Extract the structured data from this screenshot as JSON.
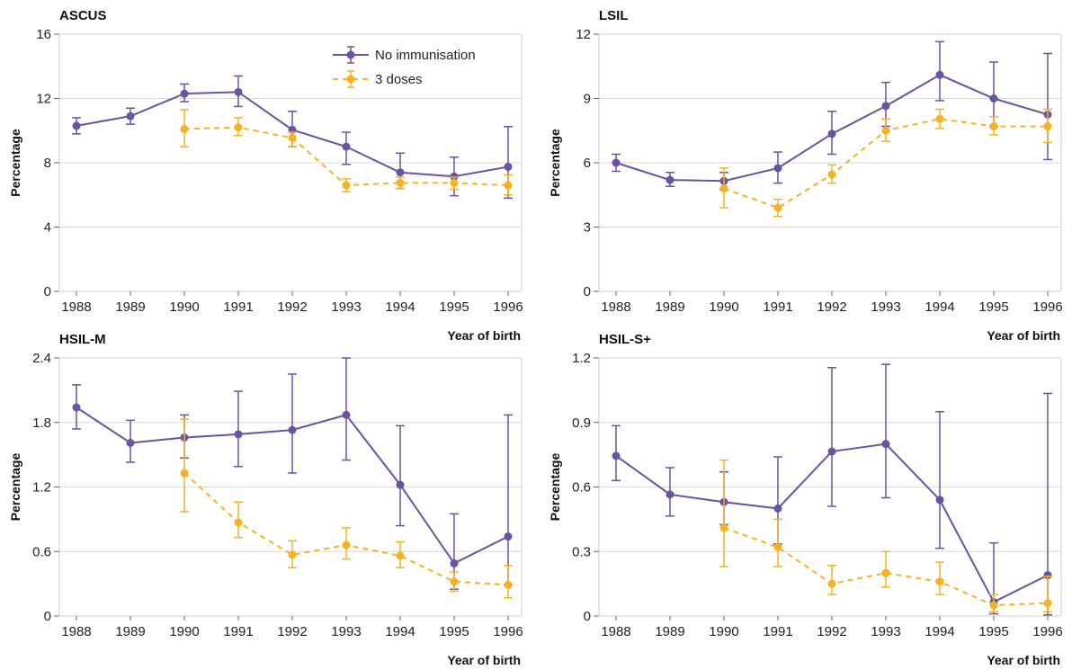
{
  "x_axis_title": "Year of birth",
  "legend": {
    "items": [
      {
        "label": "No immunisation",
        "color": "#6a53a1",
        "dash": "solid"
      },
      {
        "label": "3 doses",
        "color": "#f5b324",
        "dash": "dashed"
      }
    ]
  },
  "chart_data": [
    {
      "type": "line",
      "title": "ASCUS",
      "ylabel": "Percentage",
      "xlabel": "Year of birth",
      "ylim": [
        0,
        16
      ],
      "yticks": [
        0,
        4,
        8,
        12,
        16
      ],
      "x": [
        1988,
        1989,
        1990,
        1991,
        1992,
        1993,
        1994,
        1995,
        1996
      ],
      "series": [
        {
          "name": "No immunisation",
          "values": [
            10.3,
            10.9,
            12.3,
            12.4,
            10.05,
            9.0,
            7.4,
            7.15,
            7.75
          ],
          "lower": [
            9.8,
            10.4,
            11.8,
            11.5,
            9.0,
            7.9,
            6.4,
            5.95,
            5.8
          ],
          "upper": [
            10.8,
            11.4,
            12.9,
            13.4,
            11.2,
            9.9,
            8.6,
            8.35,
            10.25
          ]
        },
        {
          "name": "3 doses",
          "x": [
            1990,
            1991,
            1992,
            1993,
            1994,
            1995,
            1996
          ],
          "values": [
            10.1,
            10.2,
            9.55,
            6.6,
            6.75,
            6.75,
            6.6
          ],
          "lower": [
            9.0,
            9.7,
            9.0,
            6.2,
            6.4,
            6.35,
            6.0
          ],
          "upper": [
            11.3,
            10.8,
            9.9,
            7.0,
            7.1,
            7.1,
            7.25
          ]
        }
      ]
    },
    {
      "type": "line",
      "title": "LSIL",
      "ylabel": "Percentage",
      "xlabel": "Year of birth",
      "ylim": [
        0,
        12
      ],
      "yticks": [
        0,
        3,
        6,
        9,
        12
      ],
      "x": [
        1988,
        1989,
        1990,
        1991,
        1992,
        1993,
        1994,
        1995,
        1996
      ],
      "series": [
        {
          "name": "No immunisation",
          "values": [
            6.0,
            5.2,
            5.15,
            5.75,
            7.35,
            8.65,
            10.1,
            9.0,
            8.25
          ],
          "lower": [
            5.6,
            4.9,
            4.75,
            5.05,
            6.4,
            7.7,
            8.9,
            7.7,
            6.15
          ],
          "upper": [
            6.4,
            5.55,
            5.55,
            6.5,
            8.4,
            9.75,
            11.65,
            10.7,
            11.1
          ]
        },
        {
          "name": "3 doses",
          "x": [
            1990,
            1991,
            1992,
            1993,
            1994,
            1995,
            1996
          ],
          "values": [
            4.8,
            3.9,
            5.45,
            7.5,
            8.05,
            7.7,
            7.7
          ],
          "lower": [
            3.9,
            3.5,
            5.05,
            7.0,
            7.6,
            7.3,
            6.95
          ],
          "upper": [
            5.75,
            4.3,
            5.9,
            8.05,
            8.5,
            8.15,
            8.5
          ]
        }
      ]
    },
    {
      "type": "line",
      "title": "HSIL-M",
      "ylabel": "Percentage",
      "xlabel": "Year of birth",
      "ylim": [
        0,
        2.4
      ],
      "yticks": [
        "0",
        "0.6",
        "1.2",
        "1.8",
        "2.4"
      ],
      "x": [
        1988,
        1989,
        1990,
        1991,
        1992,
        1993,
        1994,
        1995,
        1996
      ],
      "series": [
        {
          "name": "No immunisation",
          "values": [
            1.94,
            1.61,
            1.66,
            1.69,
            1.73,
            1.87,
            1.22,
            0.49,
            0.74
          ],
          "lower": [
            1.74,
            1.43,
            1.47,
            1.39,
            1.33,
            1.45,
            0.84,
            0.25,
            0.29
          ],
          "upper": [
            2.15,
            1.82,
            1.87,
            2.09,
            2.25,
            2.4,
            1.77,
            0.95,
            1.87
          ]
        },
        {
          "name": "3 doses",
          "x": [
            1990,
            1991,
            1992,
            1993,
            1994,
            1995,
            1996
          ],
          "values": [
            1.33,
            0.87,
            0.57,
            0.66,
            0.56,
            0.32,
            0.29
          ],
          "lower": [
            0.97,
            0.73,
            0.45,
            0.53,
            0.45,
            0.23,
            0.17
          ],
          "upper": [
            1.83,
            1.06,
            0.7,
            0.82,
            0.69,
            0.41,
            0.47
          ]
        }
      ]
    },
    {
      "type": "line",
      "title": "HSIL-S+",
      "ylabel": "Percentage",
      "xlabel": "Year of birth",
      "ylim": [
        0,
        1.2
      ],
      "yticks": [
        "0",
        "0.3",
        "0.6",
        "0.9",
        "1.2"
      ],
      "x": [
        1988,
        1989,
        1990,
        1991,
        1992,
        1993,
        1994,
        1995,
        1996
      ],
      "series": [
        {
          "name": "No immunisation",
          "values": [
            0.745,
            0.565,
            0.53,
            0.5,
            0.765,
            0.8,
            0.54,
            0.065,
            0.19
          ],
          "lower": [
            0.63,
            0.465,
            0.425,
            0.335,
            0.51,
            0.55,
            0.315,
            0.01,
            0.005
          ],
          "upper": [
            0.885,
            0.69,
            0.67,
            0.74,
            1.155,
            1.17,
            0.95,
            0.34,
            1.035
          ]
        },
        {
          "name": "3 doses",
          "x": [
            1990,
            1991,
            1992,
            1993,
            1994,
            1995,
            1996
          ],
          "values": [
            0.41,
            0.32,
            0.15,
            0.2,
            0.16,
            0.05,
            0.06
          ],
          "lower": [
            0.23,
            0.23,
            0.1,
            0.135,
            0.1,
            0.02,
            0.02
          ],
          "upper": [
            0.725,
            0.45,
            0.235,
            0.3,
            0.25,
            0.1,
            0.185
          ]
        }
      ]
    }
  ]
}
